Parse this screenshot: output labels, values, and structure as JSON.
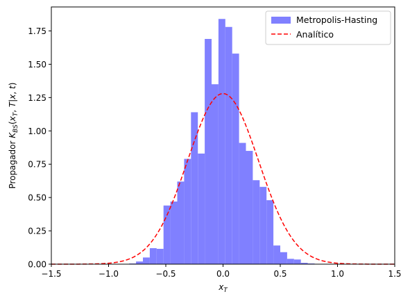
{
  "chart_data": {
    "type": "bar",
    "title": "",
    "xlabel": "x_T",
    "ylabel": "Propagador K_BS(x_T, T|x, t)",
    "xlim": [
      -1.5,
      1.5
    ],
    "ylim": [
      0,
      1.93
    ],
    "x_ticks": [
      -1.5,
      -1.0,
      -0.5,
      0.0,
      0.5,
      1.0,
      1.5
    ],
    "x_tick_labels": [
      "−1.5",
      "−1.0",
      "−0.5",
      "0.0",
      "0.5",
      "1.0",
      "1.5"
    ],
    "y_ticks": [
      0,
      0.25,
      0.5,
      0.75,
      1.0,
      1.25,
      1.5,
      1.75
    ],
    "y_tick_labels": [
      "0.00",
      "0.25",
      "0.50",
      "0.75",
      "1.00",
      "1.25",
      "1.50",
      "1.75"
    ],
    "legend": {
      "position": "top-right",
      "entries": [
        {
          "label": "Metropolis-Hasting",
          "kind": "patch",
          "color": "#8080ff"
        },
        {
          "label": "Analítico",
          "kind": "dashed-line",
          "color": "#ff0000"
        }
      ]
    },
    "series": [
      {
        "name": "Metropolis-Hasting",
        "kind": "histogram",
        "color": "#8080ff",
        "bin_edges": [
          -0.82,
          -0.76,
          -0.7,
          -0.64,
          -0.58,
          -0.52,
          -0.46,
          -0.4,
          -0.34,
          -0.28,
          -0.22,
          -0.16,
          -0.1,
          -0.04,
          0.02,
          0.08,
          0.14,
          0.2,
          0.26,
          0.32,
          0.38,
          0.44,
          0.5,
          0.56,
          0.62,
          0.68,
          0.74,
          0.8
        ],
        "values": [
          0.005,
          0.02,
          0.05,
          0.12,
          0.115,
          0.44,
          0.47,
          0.62,
          0.79,
          1.14,
          0.83,
          1.69,
          1.35,
          1.84,
          1.78,
          1.58,
          0.91,
          0.85,
          0.63,
          0.58,
          0.48,
          0.14,
          0.09,
          0.04,
          0.035,
          0.01,
          0.005
        ]
      },
      {
        "name": "Analítico",
        "kind": "line",
        "style": "dashed",
        "color": "#ff0000",
        "function": "gaussian",
        "amplitude": 1.28,
        "mean": 0.0,
        "sigma": 0.31
      }
    ]
  }
}
